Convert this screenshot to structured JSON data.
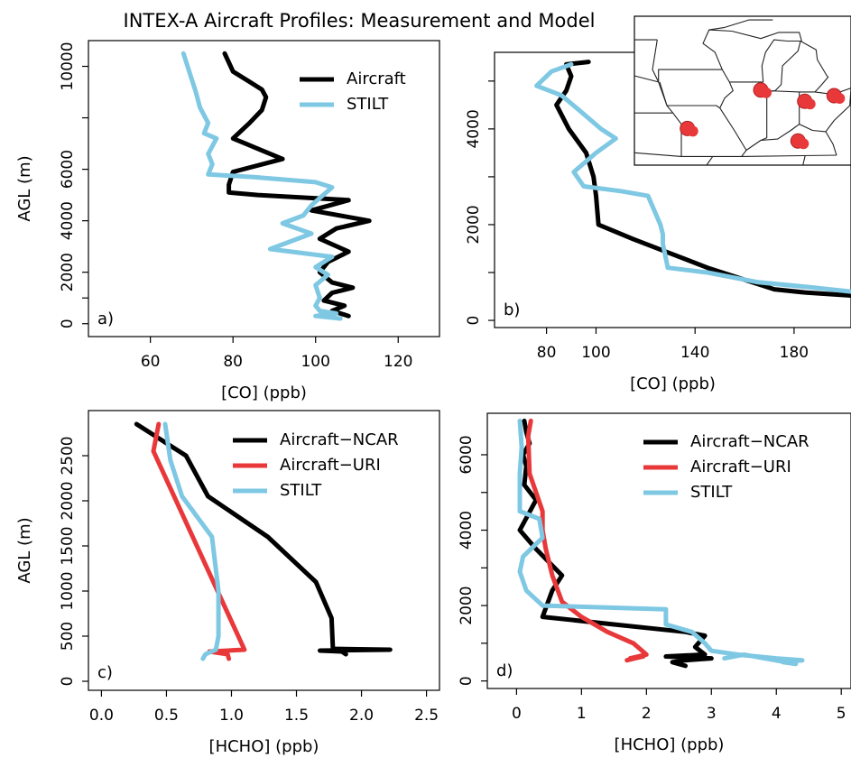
{
  "figure": {
    "title": "INTEX-A Aircraft Profiles: Measurement and Model"
  },
  "colors": {
    "aircraft": "#000000",
    "aircraft_uri": "#e8383a",
    "stilt": "#7ec8e3",
    "map_marker": "#e8383a"
  },
  "chart_data": [
    {
      "panel": "a",
      "type": "line",
      "panel_label": "a)",
      "xlabel": "[CO] (ppb)",
      "ylabel": "AGL (m)",
      "xlim": [
        45,
        130
      ],
      "ylim": [
        -500,
        11000
      ],
      "xticks": [
        60,
        80,
        100,
        120
      ],
      "yticks": [
        0,
        1000,
        2000,
        4000,
        6000,
        8000,
        10000
      ],
      "ytick_labels": [
        "0",
        "",
        "2000",
        "4000",
        "6000",
        "",
        "10000"
      ],
      "legend": "top-right",
      "series": [
        {
          "name": "Aircraft",
          "color_key": "aircraft",
          "points": [
            [
              78,
              10500
            ],
            [
              80,
              9800
            ],
            [
              84,
              9400
            ],
            [
              87,
              9100
            ],
            [
              88,
              8800
            ],
            [
              87,
              8300
            ],
            [
              84,
              7800
            ],
            [
              80,
              7200
            ],
            [
              83,
              7000
            ],
            [
              86,
              6800
            ],
            [
              92,
              6400
            ],
            [
              80,
              5900
            ],
            [
              79,
              5400
            ],
            [
              79,
              5100
            ],
            [
              86,
              5000
            ],
            [
              108,
              4800
            ],
            [
              99,
              4400
            ],
            [
              113,
              4000
            ],
            [
              105,
              3700
            ],
            [
              101,
              3300
            ],
            [
              108,
              2800
            ],
            [
              103,
              2400
            ],
            [
              101,
              2000
            ],
            [
              104,
              1600
            ],
            [
              109,
              1400
            ],
            [
              104,
              1200
            ],
            [
              102,
              900
            ],
            [
              107,
              700
            ],
            [
              104,
              500
            ],
            [
              108,
              300
            ]
          ]
        },
        {
          "name": "STILT",
          "color_key": "stilt",
          "points": [
            [
              68,
              10500
            ],
            [
              70,
              9500
            ],
            [
              71,
              9000
            ],
            [
              72,
              8400
            ],
            [
              74,
              7800
            ],
            [
              73,
              7400
            ],
            [
              76,
              7200
            ],
            [
              74,
              6600
            ],
            [
              75,
              6200
            ],
            [
              74,
              5800
            ],
            [
              85,
              5700
            ],
            [
              100,
              5500
            ],
            [
              104,
              5300
            ],
            [
              99,
              4600
            ],
            [
              97,
              4200
            ],
            [
              92,
              3900
            ],
            [
              99,
              3500
            ],
            [
              89,
              2900
            ],
            [
              104,
              2600
            ],
            [
              100,
              2200
            ],
            [
              103,
              1900
            ],
            [
              100,
              1500
            ],
            [
              101,
              1000
            ],
            [
              100,
              700
            ],
            [
              101,
              500
            ],
            [
              105,
              400
            ],
            [
              100,
              300
            ],
            [
              106,
              200
            ]
          ]
        }
      ]
    },
    {
      "panel": "b",
      "type": "line",
      "panel_label": "b)",
      "xlabel": "[CO] (ppb)",
      "ylabel": "",
      "xlim": [
        59,
        203
      ],
      "ylim": [
        -150,
        5600
      ],
      "xticks": [
        80,
        100,
        140,
        180
      ],
      "yticks": [
        0,
        1000,
        2000,
        3000,
        4000,
        5000
      ],
      "ytick_labels": [
        "0",
        "",
        "2000",
        "",
        "4000",
        ""
      ],
      "legend": "",
      "series": [
        {
          "name": "",
          "color_key": "aircraft",
          "points": [
            [
              97,
              5400
            ],
            [
              88,
              5350
            ],
            [
              90,
              5100
            ],
            [
              88,
              4800
            ],
            [
              84,
              4500
            ],
            [
              89,
              4000
            ],
            [
              96,
              3500
            ],
            [
              99,
              3000
            ],
            [
              100,
              2600
            ],
            [
              101,
              2000
            ],
            [
              115,
              1700
            ],
            [
              130,
              1400
            ],
            [
              145,
              1100
            ],
            [
              160,
              850
            ],
            [
              172,
              650
            ],
            [
              185,
              580
            ],
            [
              203,
              520
            ]
          ]
        },
        {
          "name": "",
          "color_key": "stilt",
          "points": [
            [
              90,
              5350
            ],
            [
              82,
              5200
            ],
            [
              76,
              4900
            ],
            [
              86,
              4700
            ],
            [
              93,
              4400
            ],
            [
              102,
              4000
            ],
            [
              108,
              3800
            ],
            [
              100,
              3500
            ],
            [
              91,
              3100
            ],
            [
              95,
              2800
            ],
            [
              110,
              2700
            ],
            [
              121,
              2600
            ],
            [
              126,
              2000
            ],
            [
              127,
              1800
            ],
            [
              127,
              1600
            ],
            [
              129,
              1100
            ],
            [
              145,
              1000
            ],
            [
              165,
              800
            ],
            [
              185,
              700
            ],
            [
              203,
              600
            ]
          ]
        }
      ]
    },
    {
      "panel": "c",
      "type": "line",
      "panel_label": "c)",
      "xlabel": "[HCHO] (ppb)",
      "ylabel": "AGL (m)",
      "xlim": [
        -0.1,
        2.6
      ],
      "ylim": [
        -100,
        3000
      ],
      "xticks": [
        0.0,
        0.5,
        1.0,
        1.5,
        2.0,
        2.5
      ],
      "yticks": [
        0,
        500,
        1000,
        1500,
        2000,
        2500
      ],
      "ytick_labels": [
        "0",
        "500",
        "1000",
        "1500",
        "2000",
        "2500"
      ],
      "legend": "top-right",
      "series": [
        {
          "name": "Aircraft−NCAR",
          "color_key": "aircraft",
          "points": [
            [
              0.27,
              2850
            ],
            [
              0.65,
              2500
            ],
            [
              0.82,
              2050
            ],
            [
              1.28,
              1600
            ],
            [
              1.65,
              1100
            ],
            [
              1.77,
              700
            ],
            [
              1.78,
              360
            ],
            [
              2.22,
              350
            ],
            [
              1.68,
              340
            ],
            [
              1.85,
              330
            ],
            [
              1.88,
              300
            ]
          ]
        },
        {
          "name": "Aircraft−URI",
          "color_key": "aircraft_uri",
          "points": [
            [
              0.44,
              2850
            ],
            [
              0.4,
              2550
            ],
            [
              1.1,
              350
            ],
            [
              0.83,
              330
            ],
            [
              0.97,
              300
            ],
            [
              0.98,
              250
            ]
          ]
        },
        {
          "name": "STILT",
          "color_key": "stilt",
          "points": [
            [
              0.49,
              2850
            ],
            [
              0.53,
              2450
            ],
            [
              0.62,
              2050
            ],
            [
              0.85,
              1600
            ],
            [
              0.9,
              1000
            ],
            [
              0.9,
              500
            ],
            [
              0.88,
              350
            ],
            [
              0.8,
              300
            ],
            [
              0.78,
              250
            ]
          ]
        }
      ]
    },
    {
      "panel": "d",
      "type": "line",
      "panel_label": "d)",
      "xlabel": "[HCHO] (ppb)",
      "ylabel": "",
      "xlim": [
        -0.45,
        5.15
      ],
      "ylim": [
        -200,
        7100
      ],
      "xticks": [
        0,
        1,
        2,
        3,
        4,
        5
      ],
      "yticks": [
        0,
        1000,
        2000,
        3000,
        4000,
        5000,
        6000
      ],
      "ytick_labels": [
        "0",
        "",
        "2000",
        "",
        "4000",
        "",
        "6000"
      ],
      "legend": "top-right",
      "series": [
        {
          "name": "Aircraft−NCAR",
          "color_key": "aircraft",
          "points": [
            [
              0.12,
              6900
            ],
            [
              0.15,
              6600
            ],
            [
              0.2,
              6300
            ],
            [
              0.1,
              6000
            ],
            [
              0.15,
              5700
            ],
            [
              0.12,
              5200
            ],
            [
              0.3,
              4800
            ],
            [
              0.05,
              4000
            ],
            [
              0.3,
              3500
            ],
            [
              0.7,
              2800
            ],
            [
              0.55,
              2400
            ],
            [
              0.4,
              1700
            ],
            [
              1.5,
              1500
            ],
            [
              2.6,
              1300
            ],
            [
              2.9,
              1200
            ],
            [
              2.75,
              900
            ],
            [
              2.9,
              700
            ],
            [
              2.3,
              650
            ],
            [
              3.0,
              600
            ],
            [
              2.6,
              550
            ],
            [
              2.4,
              500
            ],
            [
              2.6,
              400
            ]
          ]
        },
        {
          "name": "Aircraft−URI",
          "color_key": "aircraft_uri",
          "points": [
            [
              0.22,
              6900
            ],
            [
              0.18,
              6500
            ],
            [
              0.2,
              5500
            ],
            [
              0.3,
              5000
            ],
            [
              0.4,
              4500
            ],
            [
              0.4,
              4000
            ],
            [
              0.45,
              3500
            ],
            [
              0.55,
              2800
            ],
            [
              0.7,
              2100
            ],
            [
              1.0,
              1700
            ],
            [
              1.4,
              1300
            ],
            [
              1.8,
              1000
            ],
            [
              2.0,
              700
            ],
            [
              1.75,
              600
            ],
            [
              1.95,
              650
            ],
            [
              1.7,
              550
            ]
          ]
        },
        {
          "name": "STILT",
          "color_key": "stilt",
          "points": [
            [
              0.05,
              6900
            ],
            [
              0.08,
              6200
            ],
            [
              0.05,
              5500
            ],
            [
              0.05,
              4500
            ],
            [
              0.35,
              4300
            ],
            [
              0.4,
              3800
            ],
            [
              0.1,
              3300
            ],
            [
              0.05,
              2900
            ],
            [
              0.15,
              2400
            ],
            [
              0.4,
              2000
            ],
            [
              2.3,
              1900
            ],
            [
              2.3,
              1500
            ],
            [
              2.7,
              1300
            ],
            [
              2.9,
              1000
            ],
            [
              3.0,
              800
            ],
            [
              3.4,
              700
            ],
            [
              3.7,
              650
            ],
            [
              4.0,
              600
            ],
            [
              4.4,
              550
            ],
            [
              4.1,
              500
            ],
            [
              4.3,
              450
            ],
            [
              3.5,
              700
            ],
            [
              3.2,
              600
            ]
          ]
        }
      ]
    }
  ],
  "inset_map": {
    "markers": [
      {
        "lon": -94.1,
        "lat": 38.75
      },
      {
        "lon": -88.0,
        "lat": 41.85
      },
      {
        "lon": -84.35,
        "lat": 40.95
      },
      {
        "lon": -84.9,
        "lat": 37.75
      },
      {
        "lon": -81.9,
        "lat": 41.4
      }
    ]
  }
}
